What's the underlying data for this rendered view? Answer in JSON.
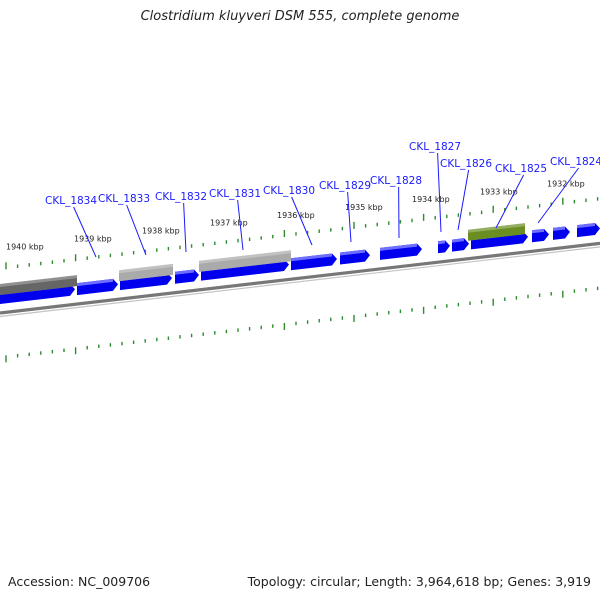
{
  "title": "Clostridium kluyveri DSM 555, complete genome",
  "footer": {
    "accession": "Accession: NC_009706",
    "info": "Topology: circular; Length: 3,964,618 bp; Genes: 3,919"
  },
  "colors": {
    "cds": "#0000ee",
    "rna_dark": "#666666",
    "rna_light": "#aaaaaa",
    "feature_green": "#6b8e23",
    "tick": "#2e8b2e",
    "label": "#1a1aff",
    "backbone": "#777777"
  },
  "kbp_labels": [
    "1940 kbp",
    "1939 kbp",
    "1938 kbp",
    "1937 kbp",
    "1936 kbp",
    "1935 kbp",
    "1934 kbp",
    "1933 kbp",
    "1932 kbp"
  ],
  "gene_labels": [
    "CKL_1834",
    "CKL_1833",
    "CKL_1832",
    "CKL_1831",
    "CKL_1830",
    "CKL_1829",
    "CKL_1828",
    "CKL_1827",
    "CKL_1826",
    "CKL_1825",
    "CKL_1824"
  ]
}
